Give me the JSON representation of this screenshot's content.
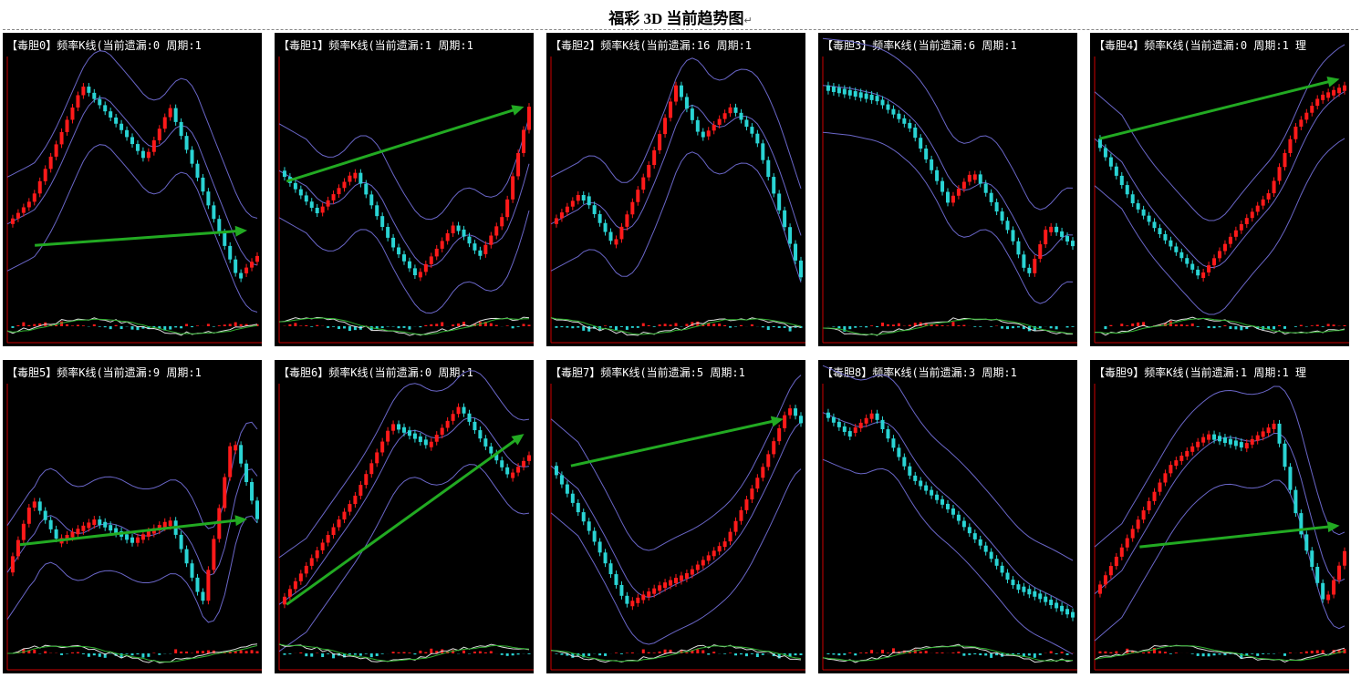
{
  "page": {
    "title": "福彩 3D 当前趋势图",
    "title_mark": "↵"
  },
  "colors": {
    "background": "#000000",
    "up_candle": "#ff1a1a",
    "down_candle": "#2ad4d4",
    "bollinger": "#6a66c8",
    "trend_arrow": "#22aa22",
    "macd_fast": "#e0e0e0",
    "macd_slow": "#2fb02f",
    "axis": "#cc0000"
  },
  "chart_data": [
    {
      "type": "candlestick-trend",
      "header": "【毒胆0】频率K线(当前遗漏:0 周期:1",
      "shape": [
        [
          0,
          0.3
        ],
        [
          0.1,
          0.42
        ],
        [
          0.3,
          0.95
        ],
        [
          0.45,
          0.75
        ],
        [
          0.55,
          0.6
        ],
        [
          0.65,
          0.85
        ],
        [
          0.8,
          0.4
        ],
        [
          0.92,
          0.05
        ],
        [
          1.0,
          0.15
        ]
      ],
      "arrow": [
        [
          0.11,
          0.2
        ],
        [
          0.96,
          0.27
        ]
      ]
    },
    {
      "type": "candlestick-trend",
      "header": "【毒胆1】频率K线(当前遗漏:1 周期:1",
      "shape": [
        [
          0,
          0.55
        ],
        [
          0.15,
          0.35
        ],
        [
          0.3,
          0.55
        ],
        [
          0.45,
          0.2
        ],
        [
          0.55,
          0.05
        ],
        [
          0.7,
          0.3
        ],
        [
          0.8,
          0.15
        ],
        [
          0.9,
          0.35
        ],
        [
          1.0,
          0.85
        ]
      ],
      "arrow": [
        [
          0.03,
          0.5
        ],
        [
          0.98,
          0.85
        ]
      ]
    },
    {
      "type": "candlestick-trend",
      "header": "【毒胆2】频率K线(当前遗漏:16 周期:1",
      "shape": [
        [
          0,
          0.3
        ],
        [
          0.12,
          0.45
        ],
        [
          0.25,
          0.2
        ],
        [
          0.4,
          0.6
        ],
        [
          0.5,
          0.95
        ],
        [
          0.6,
          0.7
        ],
        [
          0.72,
          0.85
        ],
        [
          0.82,
          0.7
        ],
        [
          1.0,
          0.05
        ]
      ],
      "arrow": null
    },
    {
      "type": "candlestick-trend",
      "header": "【毒胆3】频率K线(当前遗漏:6 周期:1",
      "shape": [
        [
          0,
          0.95
        ],
        [
          0.2,
          0.9
        ],
        [
          0.35,
          0.75
        ],
        [
          0.5,
          0.4
        ],
        [
          0.6,
          0.55
        ],
        [
          0.75,
          0.25
        ],
        [
          0.82,
          0.05
        ],
        [
          0.9,
          0.3
        ],
        [
          1.0,
          0.2
        ]
      ],
      "arrow": null
    },
    {
      "type": "candlestick-trend",
      "header": "【毒胆4】频率K线(当前遗漏:0 周期:1 理",
      "shape": [
        [
          0,
          0.7
        ],
        [
          0.15,
          0.4
        ],
        [
          0.3,
          0.2
        ],
        [
          0.42,
          0.05
        ],
        [
          0.55,
          0.25
        ],
        [
          0.7,
          0.45
        ],
        [
          0.8,
          0.75
        ],
        [
          0.9,
          0.9
        ],
        [
          1.0,
          0.95
        ]
      ],
      "arrow": [
        [
          0.02,
          0.7
        ],
        [
          0.98,
          0.98
        ]
      ]
    },
    {
      "type": "candlestick-trend",
      "header": "【毒胆5】频率K线(当前遗漏:9 周期:1",
      "shape": [
        [
          0,
          0.2
        ],
        [
          0.1,
          0.55
        ],
        [
          0.2,
          0.35
        ],
        [
          0.35,
          0.45
        ],
        [
          0.5,
          0.35
        ],
        [
          0.65,
          0.45
        ],
        [
          0.78,
          0.05
        ],
        [
          0.9,
          0.85
        ],
        [
          1.0,
          0.45
        ]
      ],
      "arrow": [
        [
          0.05,
          0.33
        ],
        [
          0.96,
          0.45
        ]
      ]
    },
    {
      "type": "candlestick-trend",
      "header": "【毒胆6】频率K线(当前遗漏:0 周期:1",
      "shape": [
        [
          0,
          0.05
        ],
        [
          0.15,
          0.3
        ],
        [
          0.3,
          0.55
        ],
        [
          0.45,
          0.9
        ],
        [
          0.6,
          0.8
        ],
        [
          0.72,
          0.98
        ],
        [
          0.82,
          0.8
        ],
        [
          0.92,
          0.65
        ],
        [
          1.0,
          0.75
        ]
      ],
      "arrow": [
        [
          0.03,
          0.05
        ],
        [
          0.98,
          0.85
        ]
      ]
    },
    {
      "type": "candlestick-trend",
      "header": "【毒胆7】频率K线(当前遗漏:5 周期:1",
      "shape": [
        [
          0,
          0.7
        ],
        [
          0.15,
          0.4
        ],
        [
          0.3,
          0.05
        ],
        [
          0.45,
          0.15
        ],
        [
          0.55,
          0.2
        ],
        [
          0.7,
          0.35
        ],
        [
          0.85,
          0.7
        ],
        [
          0.95,
          0.98
        ],
        [
          1.0,
          0.9
        ]
      ],
      "arrow": [
        [
          0.08,
          0.7
        ],
        [
          0.93,
          0.92
        ]
      ]
    },
    {
      "type": "candlestick-trend",
      "header": "【毒胆8】频率K线(当前遗漏:3 周期:1",
      "shape": [
        [
          0,
          0.95
        ],
        [
          0.1,
          0.85
        ],
        [
          0.2,
          0.95
        ],
        [
          0.35,
          0.65
        ],
        [
          0.5,
          0.5
        ],
        [
          0.65,
          0.3
        ],
        [
          0.75,
          0.15
        ],
        [
          0.85,
          0.1
        ],
        [
          1.0,
          0.0
        ]
      ],
      "arrow": null
    },
    {
      "type": "candlestick-trend",
      "header": "【毒胆9】频率K线(当前遗漏:1 周期:1 理",
      "shape": [
        [
          0,
          0.1
        ],
        [
          0.15,
          0.4
        ],
        [
          0.3,
          0.7
        ],
        [
          0.45,
          0.85
        ],
        [
          0.6,
          0.8
        ],
        [
          0.72,
          0.9
        ],
        [
          0.82,
          0.4
        ],
        [
          0.92,
          0.05
        ],
        [
          1.0,
          0.3
        ]
      ],
      "arrow": [
        [
          0.18,
          0.32
        ],
        [
          0.98,
          0.42
        ]
      ]
    }
  ]
}
